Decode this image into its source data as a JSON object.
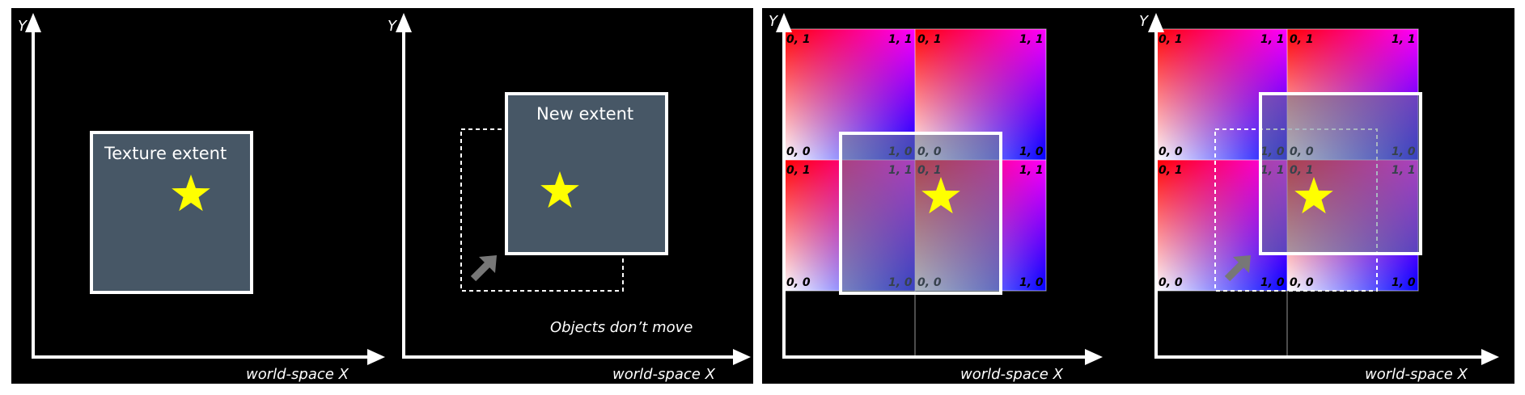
{
  "colors": {
    "background": "#000000",
    "axis": "#ffffff",
    "extent_fill": "#475766",
    "extent_fill_translucent": "rgba(100,120,140,0.55)",
    "star": "#ffff00",
    "move_arrow": "#777777",
    "tile_corner_top_left": "#ff0000",
    "tile_corner_top_right": "#ff00ff",
    "tile_corner_bottom_left": "#ffffff",
    "tile_corner_bottom_right": "#0000ff",
    "corner_text": "#000000"
  },
  "axes": {
    "y_label": "Y",
    "x_label": "world-space X"
  },
  "left": {
    "texture_extent_label": "Texture extent",
    "new_extent_label": "New extent",
    "objects_caption": "Objects don’t move"
  },
  "tile_corners": {
    "top_left": "0, 1",
    "top_right": "1, 1",
    "bottom_left": "0, 0",
    "bottom_right": "1, 0"
  },
  "icons": [
    "star-icon",
    "move-arrow-icon"
  ]
}
